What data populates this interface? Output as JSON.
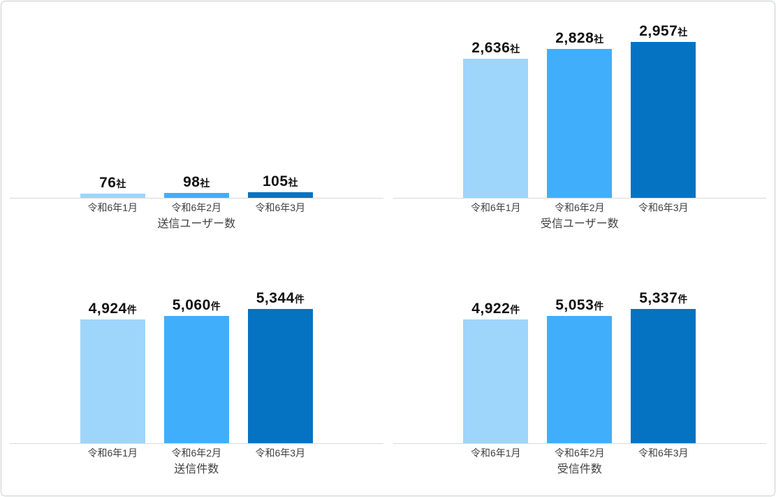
{
  "page": {
    "background": "#ffffff",
    "border_color": "#c9cccd"
  },
  "palette": {
    "bar_colors": [
      "#9ED5FA",
      "#41AEFB",
      "#0673C2"
    ],
    "axis_line": "#d9d9d9",
    "value_label_color": "#111111",
    "text_color": "#404040"
  },
  "chart_data": [
    {
      "type": "bar",
      "title": "送信ユーザー数",
      "categories": [
        "令和6年1月",
        "令和6年2月",
        "令和6年3月"
      ],
      "values": [
        76,
        98,
        105
      ],
      "value_labels": [
        "76",
        "98",
        "105"
      ],
      "unit": "社",
      "xlabel": "",
      "ylabel": "",
      "ylim": [
        0,
        3500
      ],
      "grid": false,
      "legend": "none"
    },
    {
      "type": "bar",
      "title": "受信ユーザー数",
      "categories": [
        "令和6年1月",
        "令和6年2月",
        "令和6年3月"
      ],
      "values": [
        2636,
        2828,
        2957
      ],
      "value_labels": [
        "2,636",
        "2,828",
        "2,957"
      ],
      "unit": "社",
      "xlabel": "",
      "ylabel": "",
      "ylim": [
        0,
        3500
      ],
      "grid": false,
      "legend": "none"
    },
    {
      "type": "bar",
      "title": "送信件数",
      "categories": [
        "令和6年1月",
        "令和6年2月",
        "令和6年3月"
      ],
      "values": [
        4924,
        5060,
        5344
      ],
      "value_labels": [
        "4,924",
        "5,060",
        "5,344"
      ],
      "unit": "件",
      "xlabel": "",
      "ylabel": "",
      "ylim": [
        0,
        6700
      ],
      "grid": false,
      "legend": "none"
    },
    {
      "type": "bar",
      "title": "受信件数",
      "categories": [
        "令和6年1月",
        "令和6年2月",
        "令和6年3月"
      ],
      "values": [
        4922,
        5053,
        5337
      ],
      "value_labels": [
        "4,922",
        "5,053",
        "5,337"
      ],
      "unit": "件",
      "xlabel": "",
      "ylabel": "",
      "ylim": [
        0,
        6700
      ],
      "grid": false,
      "legend": "none"
    }
  ]
}
